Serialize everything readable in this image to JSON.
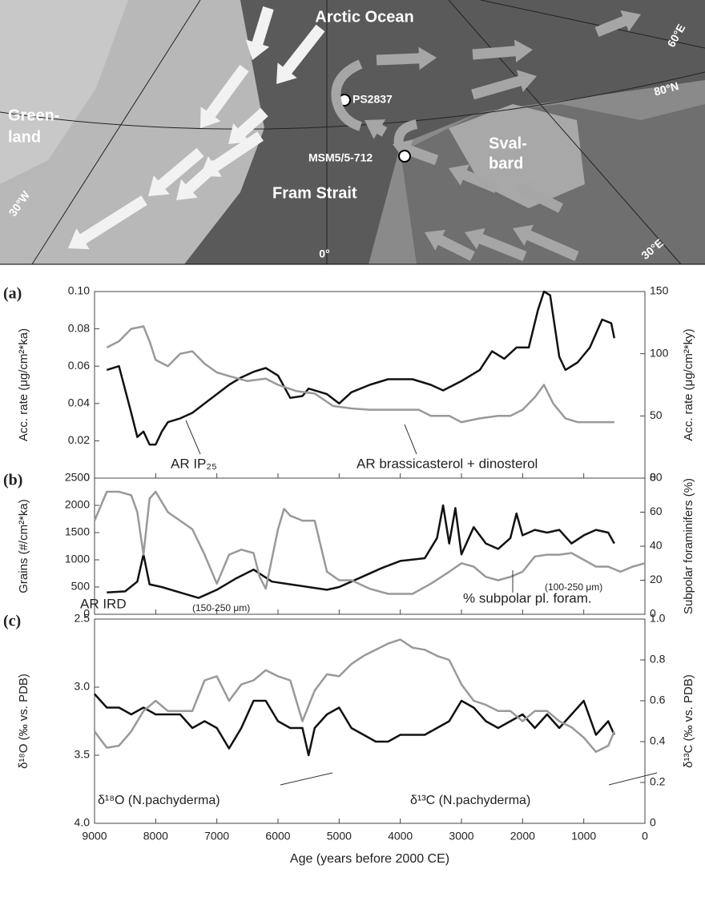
{
  "map": {
    "labels": [
      "Arctic Ocean",
      "PS2837",
      "80°N",
      "60°E",
      "Green-",
      "land",
      "MSM5/5-712",
      "Sval-",
      "bard",
      "Fram Strait",
      "30°W",
      "0°",
      "30°E"
    ]
  },
  "chart_data": [
    {
      "type": "line",
      "panel_label": "(a)",
      "xlim": [
        9000,
        0
      ],
      "xticks": [
        9000,
        8000,
        7000,
        6000,
        5000,
        4000,
        3000,
        2000,
        1000,
        0
      ],
      "ylabel": "Acc. rate (μg/cm²*ka)",
      "ylim": [
        0,
        0.1
      ],
      "yticks": [
        0,
        0.02,
        0.04,
        0.06,
        0.08,
        {
          "value": 0.1,
          "label": "0.10"
        }
      ],
      "y2label": "Acc. rate (μg/cm²*ky)",
      "y2lim": [
        0,
        150
      ],
      "y2ticks": [
        0,
        50,
        100,
        150
      ],
      "annotations": [
        "AR IP₂₅",
        "AR brassicasterol + dinosterol"
      ],
      "series": [
        {
          "color": "#111111",
          "x": [
            8800,
            8600,
            8400,
            8300,
            8200,
            8100,
            8000,
            7900,
            7800,
            7600,
            7400,
            7200,
            7000,
            6800,
            6600,
            6400,
            6200,
            6000,
            5800,
            5600,
            5500,
            5200,
            5000,
            4800,
            4500,
            4200,
            3800,
            3500,
            3300,
            3000,
            2700,
            2500,
            2300,
            2100,
            1900,
            1750,
            1650,
            1550,
            1400,
            1300,
            1100,
            900,
            700,
            550,
            500
          ],
          "values": [
            0.058,
            0.06,
            0.035,
            0.022,
            0.025,
            0.018,
            0.018,
            0.025,
            0.03,
            0.032,
            0.035,
            0.04,
            0.045,
            0.05,
            0.054,
            0.057,
            0.059,
            0.055,
            0.043,
            0.044,
            0.048,
            0.045,
            0.04,
            0.046,
            0.05,
            0.053,
            0.053,
            0.05,
            0.047,
            0.052,
            0.058,
            0.068,
            0.064,
            0.07,
            0.07,
            0.09,
            0.1,
            0.098,
            0.065,
            0.058,
            0.062,
            0.07,
            0.085,
            0.083,
            0.075
          ]
        },
        {
          "color": "#999999",
          "axis": "y2",
          "x": [
            8800,
            8600,
            8400,
            8200,
            8100,
            8000,
            7800,
            7600,
            7400,
            7200,
            7000,
            6800,
            6500,
            6200,
            6000,
            5700,
            5400,
            5100,
            4800,
            4500,
            4000,
            3700,
            3500,
            3200,
            3000,
            2700,
            2400,
            2200,
            2000,
            1800,
            1650,
            1500,
            1300,
            1100,
            900,
            600,
            500
          ],
          "values": [
            105,
            110,
            120,
            122,
            110,
            95,
            90,
            100,
            102,
            92,
            85,
            82,
            78,
            80,
            75,
            70,
            68,
            58,
            56,
            55,
            55,
            55,
            50,
            50,
            45,
            48,
            50,
            50,
            55,
            65,
            75,
            60,
            48,
            45,
            45,
            45,
            45
          ]
        }
      ]
    },
    {
      "type": "line",
      "panel_label": "(b)",
      "xlim": [
        9000,
        0
      ],
      "xticks": [
        9000,
        8000,
        7000,
        6000,
        5000,
        4000,
        3000,
        2000,
        1000,
        0
      ],
      "ylabel": "Grains (#/cm²*ka)",
      "ylim": [
        0,
        2500
      ],
      "yticks": [
        0,
        500,
        1000,
        1500,
        2000,
        2500
      ],
      "y2label": "Subpolar foraminifers (%)",
      "y2lim": [
        0,
        80
      ],
      "y2ticks": [
        0,
        20,
        40,
        60,
        80
      ],
      "annotations": [
        "AR IRD",
        "(150-250 μm)",
        "% subpolar pl. foram.",
        "(100-250 μm)"
      ],
      "series": [
        {
          "color": "#111111",
          "x": [
            8800,
            8500,
            8300,
            8200,
            8100,
            7900,
            7600,
            7300,
            7000,
            6700,
            6400,
            6100,
            5800,
            5500,
            5200,
            5000,
            4700,
            4300,
            4000,
            3600,
            3400,
            3300,
            3200,
            3100,
            3000,
            2800,
            2600,
            2400,
            2200,
            2100,
            2000,
            1800,
            1600,
            1400,
            1200,
            1000,
            800,
            600,
            500
          ],
          "values": [
            400,
            420,
            600,
            1100,
            550,
            500,
            400,
            300,
            450,
            650,
            820,
            600,
            550,
            500,
            450,
            500,
            650,
            850,
            980,
            1030,
            1400,
            2000,
            1300,
            1950,
            1100,
            1600,
            1300,
            1200,
            1400,
            1850,
            1450,
            1550,
            1500,
            1550,
            1300,
            1450,
            1550,
            1500,
            1300
          ]
        },
        {
          "color": "#999999",
          "axis": "y2",
          "x": [
            9000,
            8800,
            8600,
            8400,
            8300,
            8200,
            8100,
            8000,
            7800,
            7600,
            7400,
            7200,
            7000,
            6800,
            6600,
            6400,
            6300,
            6200,
            6000,
            5900,
            5800,
            5600,
            5400,
            5200,
            5000,
            4800,
            4500,
            4200,
            3800,
            3500,
            3200,
            3000,
            2800,
            2600,
            2400,
            2200,
            2000,
            1800,
            1600,
            1400,
            1200,
            1000,
            800,
            600,
            400,
            200,
            0
          ],
          "values": [
            55,
            72,
            72,
            70,
            60,
            35,
            68,
            72,
            60,
            55,
            50,
            35,
            18,
            35,
            38,
            36,
            22,
            15,
            50,
            62,
            58,
            55,
            55,
            25,
            20,
            20,
            15,
            12,
            12,
            18,
            25,
            30,
            28,
            22,
            20,
            22,
            25,
            34,
            35,
            35,
            36,
            32,
            28,
            28,
            25,
            28,
            30
          ]
        }
      ]
    },
    {
      "type": "line",
      "panel_label": "(c)",
      "xlim": [
        9000,
        0
      ],
      "xticks": [
        9000,
        8000,
        7000,
        6000,
        5000,
        4000,
        3000,
        2000,
        1000,
        0
      ],
      "xlabel": "Age (years before 2000 CE)",
      "ylabel": "δ¹⁸O (‰ vs. PDB)",
      "ylim": [
        4.0,
        2.5
      ],
      "yticks": [
        2.5,
        {
          "value": 3.0,
          "label": "3.0"
        },
        3.5,
        {
          "value": 4.0,
          "label": "4.0"
        }
      ],
      "y2label": "δ¹³C (‰ vs. PDB)",
      "y2lim": [
        0,
        1.0
      ],
      "y2ticks": [
        0,
        0.2,
        0.4,
        0.6,
        0.8,
        {
          "value": 1.0,
          "label": "1.0"
        }
      ],
      "annotations": [
        "δ¹⁸O (N.pachyderma)",
        "δ¹³C (N.pachyderma)"
      ],
      "series": [
        {
          "color": "#111111",
          "x": [
            9000,
            8800,
            8600,
            8400,
            8200,
            8000,
            7800,
            7600,
            7400,
            7200,
            7000,
            6800,
            6600,
            6400,
            6200,
            6000,
            5800,
            5600,
            5500,
            5400,
            5200,
            5000,
            4800,
            4600,
            4400,
            4200,
            4000,
            3800,
            3600,
            3400,
            3200,
            3000,
            2800,
            2600,
            2400,
            2200,
            2000,
            1800,
            1600,
            1400,
            1200,
            1000,
            800,
            600,
            500
          ],
          "values": [
            3.05,
            3.15,
            3.15,
            3.2,
            3.15,
            3.2,
            3.2,
            3.2,
            3.3,
            3.25,
            3.3,
            3.45,
            3.3,
            3.1,
            3.1,
            3.25,
            3.3,
            3.3,
            3.5,
            3.3,
            3.2,
            3.15,
            3.3,
            3.35,
            3.4,
            3.4,
            3.35,
            3.35,
            3.35,
            3.3,
            3.25,
            3.1,
            3.15,
            3.25,
            3.3,
            3.25,
            3.2,
            3.3,
            3.2,
            3.3,
            3.2,
            3.1,
            3.35,
            3.25,
            3.35
          ]
        },
        {
          "color": "#999999",
          "axis": "y2",
          "x": [
            9000,
            8800,
            8600,
            8400,
            8200,
            8000,
            7800,
            7600,
            7400,
            7200,
            7000,
            6800,
            6600,
            6400,
            6200,
            6000,
            5800,
            5600,
            5400,
            5200,
            5000,
            4800,
            4600,
            4400,
            4200,
            4000,
            3800,
            3600,
            3400,
            3200,
            3000,
            2800,
            2600,
            2400,
            2200,
            2000,
            1800,
            1600,
            1400,
            1200,
            1000,
            800,
            600,
            500
          ],
          "values": [
            0.45,
            0.37,
            0.38,
            0.45,
            0.55,
            0.6,
            0.55,
            0.55,
            0.55,
            0.7,
            0.72,
            0.6,
            0.68,
            0.7,
            0.75,
            0.72,
            0.7,
            0.5,
            0.65,
            0.73,
            0.72,
            0.78,
            0.82,
            0.85,
            0.88,
            0.9,
            0.86,
            0.85,
            0.82,
            0.8,
            0.68,
            0.6,
            0.58,
            0.55,
            0.55,
            0.5,
            0.55,
            0.55,
            0.5,
            0.47,
            0.42,
            0.35,
            0.38,
            0.45
          ]
        }
      ]
    }
  ]
}
